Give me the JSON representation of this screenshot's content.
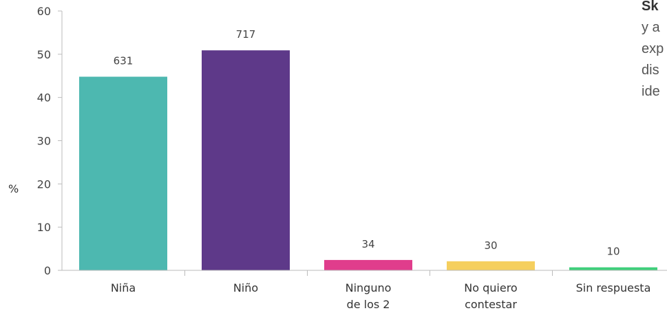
{
  "chart_data": {
    "type": "bar",
    "ylabel": "%",
    "ylim": [
      0,
      60
    ],
    "yticks": [
      "0",
      "10",
      "20",
      "30",
      "40",
      "50",
      "60"
    ],
    "categories": [
      [
        "Niña"
      ],
      [
        "Niño"
      ],
      [
        "Ninguno",
        "de los 2"
      ],
      [
        "No quiero",
        "contestar"
      ],
      [
        "Sin respuesta"
      ]
    ],
    "values": [
      44.8,
      50.9,
      2.4,
      2.1,
      0.7
    ],
    "data_labels": [
      "631",
      "717",
      "34",
      "30",
      "10"
    ],
    "colors": [
      "#4db8b0",
      "#5e3989",
      "#e03d8c",
      "#f5cf5e",
      "#3ecf7a"
    ],
    "grid": false
  },
  "side_text": {
    "lines": [
      "Sk",
      "y a",
      "exp",
      "dis",
      "ide"
    ]
  }
}
